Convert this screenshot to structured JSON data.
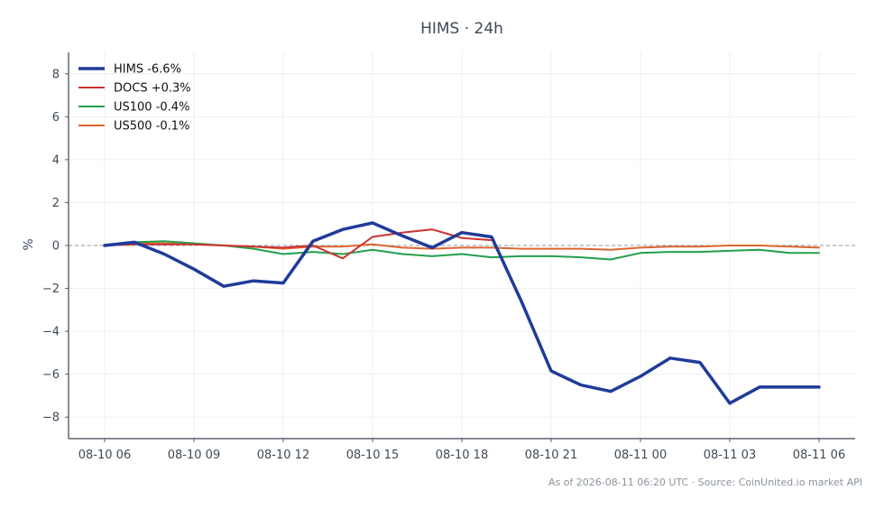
{
  "chart_data": {
    "type": "line",
    "title": "HIMS · 24h",
    "ylabel": "%",
    "xlabel": "",
    "ylim": [
      -9,
      9
    ],
    "yticks": [
      8,
      6,
      4,
      2,
      0,
      -2,
      -4,
      -6,
      -8
    ],
    "ytick_labels": [
      "8",
      "6",
      "4",
      "2",
      "0",
      "−2",
      "−4",
      "−6",
      "−8"
    ],
    "xtick_labels": [
      "08-10 06",
      "08-10 09",
      "08-10 12",
      "08-10 15",
      "08-10 18",
      "08-10 21",
      "08-11 00",
      "08-11 03",
      "08-11 06"
    ],
    "xtick_hours": [
      0,
      3,
      6,
      9,
      12,
      15,
      18,
      21,
      24
    ],
    "x_hours": [
      0,
      1,
      2,
      3,
      4,
      5,
      6,
      7,
      8,
      9,
      10,
      11,
      12,
      13,
      14,
      15,
      16,
      17,
      18,
      19,
      20,
      21,
      22,
      23,
      24
    ],
    "grid": true,
    "zero_line": true,
    "legend_position": "top-left",
    "series": [
      {
        "name": "HIMS -6.6%",
        "color": "#1f3b9a",
        "width": 3.5,
        "values": [
          0.0,
          0.15,
          -0.4,
          -1.1,
          -1.9,
          -1.65,
          -1.75,
          0.2,
          0.75,
          1.05,
          0.45,
          -0.1,
          0.6,
          0.4,
          -2.6,
          -5.85,
          -6.5,
          -6.8,
          -6.1,
          -5.25,
          -5.45,
          -7.35,
          -6.6,
          -6.6,
          -6.6
        ]
      },
      {
        "name": "DOCS +0.3%",
        "color": "#cc3333",
        "width": 2,
        "values": [
          0.0,
          0.05,
          0.05,
          0.05,
          0.0,
          -0.05,
          -0.1,
          0.0,
          -0.6,
          0.4,
          0.6,
          0.75,
          0.35,
          0.25,
          null,
          null,
          null,
          null,
          null,
          null,
          null,
          null,
          null,
          null,
          null
        ]
      },
      {
        "name": "US100 -0.4%",
        "color": "#22a04b",
        "width": 2,
        "values": [
          0.0,
          0.15,
          0.2,
          0.1,
          0.0,
          -0.15,
          -0.4,
          -0.3,
          -0.4,
          -0.2,
          -0.4,
          -0.5,
          -0.4,
          -0.55,
          -0.5,
          -0.5,
          -0.55,
          -0.65,
          -0.35,
          -0.3,
          -0.3,
          -0.25,
          -0.2,
          -0.35,
          -0.35
        ]
      },
      {
        "name": "US500 -0.1%",
        "color": "#dd6630",
        "width": 2,
        "values": [
          0.0,
          0.1,
          0.1,
          0.05,
          0.0,
          -0.05,
          -0.15,
          -0.05,
          -0.05,
          0.05,
          -0.1,
          -0.15,
          -0.1,
          -0.1,
          -0.15,
          -0.15,
          -0.15,
          -0.2,
          -0.1,
          -0.05,
          -0.05,
          0.0,
          0.0,
          -0.05,
          -0.1
        ]
      }
    ]
  },
  "footer": "As of 2026-08-11 06:20 UTC · Source: CoinUnited.io market API"
}
